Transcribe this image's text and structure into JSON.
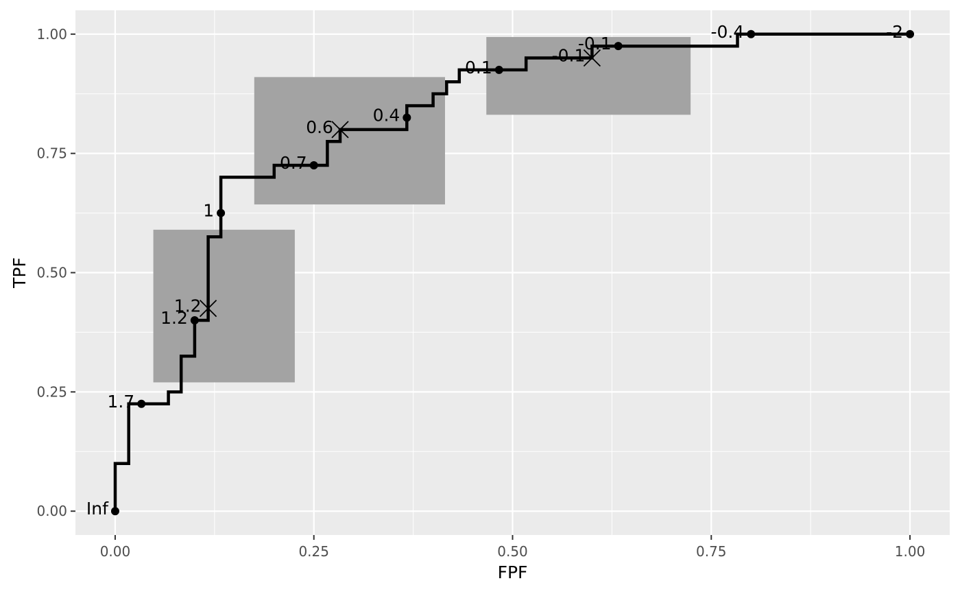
{
  "chart_data": {
    "type": "line",
    "subtype": "step-roc-curve",
    "xlabel": "FPF",
    "ylabel": "TPF",
    "xlim": [
      -0.05,
      1.05
    ],
    "ylim": [
      -0.05,
      1.05
    ],
    "x_ticks": [
      "0.00",
      "0.25",
      "0.50",
      "0.75",
      "1.00"
    ],
    "y_ticks": [
      "0.00",
      "0.25",
      "0.50",
      "0.75",
      "1.00"
    ],
    "grid": true,
    "background": "#ebebeb",
    "curve_color": "#000000",
    "confidence_region_color": "#a3a3a3",
    "step_curve": {
      "x": [
        0,
        0,
        0.017,
        0.017,
        0.067,
        0.067,
        0.083,
        0.083,
        0.1,
        0.1,
        0.117,
        0.117,
        0.133,
        0.133,
        0.2,
        0.2,
        0.267,
        0.267,
        0.283,
        0.283,
        0.367,
        0.367,
        0.4,
        0.4,
        0.417,
        0.417,
        0.433,
        0.433,
        0.517,
        0.517,
        0.6,
        0.6,
        0.783,
        0.783,
        1.0
      ],
      "y": [
        0,
        0.1,
        0.1,
        0.225,
        0.225,
        0.25,
        0.25,
        0.325,
        0.325,
        0.4,
        0.4,
        0.575,
        0.575,
        0.7,
        0.7,
        0.725,
        0.725,
        0.775,
        0.775,
        0.8,
        0.8,
        0.85,
        0.85,
        0.875,
        0.875,
        0.9,
        0.9,
        0.925,
        0.925,
        0.95,
        0.95,
        0.975,
        0.975,
        1.0,
        1.0
      ]
    },
    "cutoff_points": [
      {
        "label": "Inf",
        "x": 0.0,
        "y": 0.0
      },
      {
        "label": "1.7",
        "x": 0.033,
        "y": 0.225
      },
      {
        "label": "1.2",
        "x": 0.1,
        "y": 0.4
      },
      {
        "label": "1",
        "x": 0.133,
        "y": 0.625
      },
      {
        "label": "0.7",
        "x": 0.25,
        "y": 0.725
      },
      {
        "label": "0.4",
        "x": 0.367,
        "y": 0.825
      },
      {
        "label": "0.1",
        "x": 0.483,
        "y": 0.925
      },
      {
        "label": "-0.1",
        "x": 0.633,
        "y": 0.975
      },
      {
        "label": "-0.4",
        "x": 0.8,
        "y": 1.0
      },
      {
        "label": "-2",
        "x": 1.0,
        "y": 1.0
      }
    ],
    "confidence_points": [
      {
        "label": "1.2",
        "x": 0.117,
        "y": 0.425,
        "x_range": [
          0.048,
          0.226
        ],
        "y_range": [
          0.27,
          0.59
        ]
      },
      {
        "label": "0.6",
        "x": 0.283,
        "y": 0.8,
        "x_range": [
          0.175,
          0.415
        ],
        "y_range": [
          0.643,
          0.91
        ]
      },
      {
        "label": "-0.1",
        "x": 0.6,
        "y": 0.95,
        "x_range": [
          0.467,
          0.724
        ],
        "y_range": [
          0.831,
          0.994
        ]
      }
    ]
  }
}
